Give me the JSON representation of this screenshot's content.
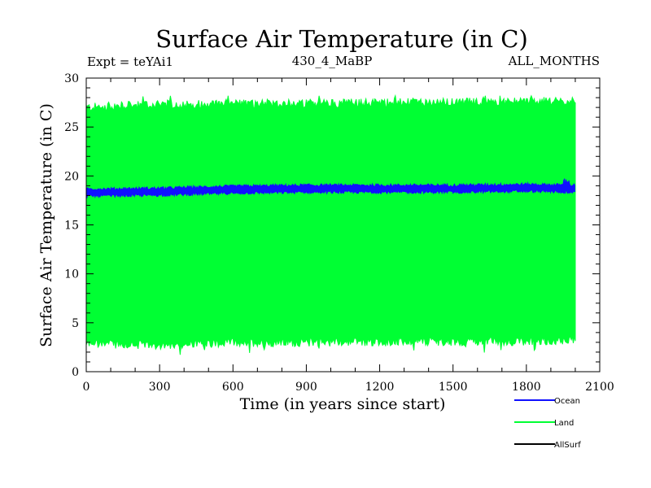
{
  "chart_data": {
    "type": "line",
    "title": "Surface Air Temperature (in C)",
    "subtitle_left": "Expt = teYAi1",
    "subtitle_center": "430_4_MaBP",
    "subtitle_right": "ALL_MONTHS",
    "xlabel": "Time (in years since start)",
    "ylabel": "Surface Air Temperature (in C)",
    "xlim": [
      0,
      2100
    ],
    "ylim": [
      0,
      30
    ],
    "x_ticks": [
      0,
      300,
      600,
      900,
      1200,
      1500,
      1800,
      2100
    ],
    "y_ticks": [
      0,
      5,
      10,
      15,
      20,
      25,
      30
    ],
    "x_tick_labels": [
      "0",
      "300",
      "600",
      "900",
      "1200",
      "1500",
      "1800",
      "2100"
    ],
    "y_tick_labels": [
      "0",
      "5",
      "10",
      "15",
      "20",
      "25",
      "30"
    ],
    "series": [
      {
        "name": "Land",
        "color": "#00ff33",
        "kind": "seasonal-band",
        "x_range": [
          0,
          2000
        ],
        "upper_envelope": {
          "x": [
            0,
            300,
            600,
            900,
            1200,
            1500,
            1800,
            2000
          ],
          "y": [
            27.0,
            27.3,
            27.4,
            27.4,
            27.5,
            27.5,
            27.6,
            27.6
          ]
        },
        "lower_envelope": {
          "x": [
            0,
            300,
            600,
            900,
            1200,
            1500,
            1800,
            2000
          ],
          "y": [
            2.9,
            2.7,
            3.0,
            3.0,
            3.1,
            3.1,
            3.1,
            3.3
          ]
        },
        "peak_max": 28.2,
        "trough_min": 1.5
      },
      {
        "name": "Ocean",
        "color": "#1010ff",
        "kind": "noisy-band",
        "x_range": [
          0,
          2000
        ],
        "mean": {
          "x": [
            0,
            300,
            600,
            900,
            1200,
            1500,
            1800,
            2000
          ],
          "y": [
            18.3,
            18.4,
            18.6,
            18.7,
            18.7,
            18.7,
            18.8,
            18.7
          ]
        },
        "half_width": 0.35,
        "peak_max": 19.8
      },
      {
        "name": "AllSurf",
        "color": "#000000",
        "kind": "line",
        "x": [],
        "y": []
      }
    ],
    "legend": {
      "position": "bottom-right",
      "entries": [
        "Ocean",
        "Land",
        "AllSurf"
      ]
    }
  }
}
